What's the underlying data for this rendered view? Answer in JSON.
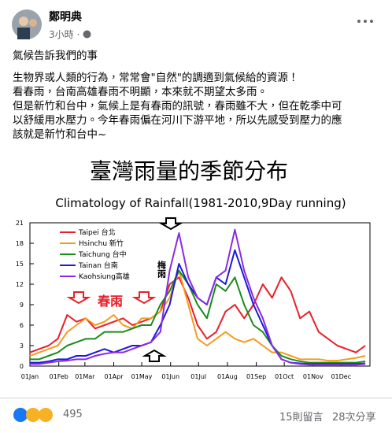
{
  "header": {
    "name": "鄭明典",
    "time": "3小時"
  },
  "post": {
    "lines": [
      "氣候告訴我們的事",
      "生物界或人類的行為，常常會\"自然\"的調適到氣候給的資源！",
      "看春雨，台南高雄春雨不明顯，本來就不期望太多雨。",
      "但是新竹和台中，氣候上是有春雨的訊號，春雨雖不大，但在乾季中可",
      "以舒緩用水壓力。今年春雨偏在河川下游平地，所以先感受到壓力的應",
      "該就是新竹和台中~"
    ]
  },
  "chart_data": {
    "type": "line",
    "title": "臺灣雨量的季節分布",
    "subtitle": "Climatology of Rainfall(1981-2010,9Day running)",
    "x": [
      0,
      10,
      20,
      30,
      40,
      50,
      60,
      70,
      80,
      90,
      100,
      110,
      120,
      130,
      140,
      150,
      160,
      170,
      180,
      190,
      200,
      210,
      220,
      230,
      240,
      250,
      260,
      270,
      280,
      290,
      300,
      310,
      320,
      330,
      340,
      350,
      360
    ],
    "xlim": [
      0,
      365
    ],
    "xticks": [
      {
        "value": 0,
        "label": "01Jan"
      },
      {
        "value": 31,
        "label": "01Feb"
      },
      {
        "value": 59,
        "label": "01Mar"
      },
      {
        "value": 90,
        "label": "01Apr"
      },
      {
        "value": 120,
        "label": "01May"
      },
      {
        "value": 151,
        "label": "01Jun"
      },
      {
        "value": 181,
        "label": "01Jul"
      },
      {
        "value": 212,
        "label": "01Aug"
      },
      {
        "value": 243,
        "label": "01Sep"
      },
      {
        "value": 273,
        "label": "01Oct"
      },
      {
        "value": 304,
        "label": "01Nov"
      },
      {
        "value": 334,
        "label": "01Dec"
      }
    ],
    "ylim": [
      0,
      21
    ],
    "yticks": [
      0,
      3,
      6,
      9,
      12,
      15,
      18,
      21
    ],
    "series": [
      {
        "name": "Taipei 台北",
        "color": "#e8202a",
        "values": [
          2,
          2.5,
          3,
          4,
          7.5,
          6.5,
          7,
          5.5,
          6,
          6.5,
          7,
          6,
          6.5,
          7,
          8,
          12,
          13,
          10,
          6,
          4,
          5,
          8,
          9,
          7,
          9,
          12,
          10,
          13,
          11,
          7,
          8,
          5,
          4,
          3,
          2.5,
          2,
          3
        ]
      },
      {
        "name": "Hsinchu 新竹",
        "color": "#f39c1f",
        "values": [
          1.5,
          2,
          2.5,
          3,
          5,
          6,
          7,
          6,
          6.5,
          7.5,
          6,
          5.5,
          7,
          7,
          8,
          10,
          14,
          9,
          4,
          3,
          4,
          5,
          4,
          3.5,
          4,
          3,
          2,
          2,
          1.5,
          1,
          1,
          1,
          0.8,
          0.8,
          1,
          1.2,
          1.5
        ]
      },
      {
        "name": "Taichung 台中",
        "color": "#1a8c1a",
        "values": [
          1,
          1,
          1.5,
          2,
          3,
          3.5,
          4,
          4,
          5,
          5,
          5,
          5.5,
          6,
          6,
          9,
          11,
          14,
          12,
          9,
          7,
          12,
          11,
          13,
          9,
          6,
          5,
          3,
          1.5,
          1,
          0.7,
          0.5,
          0.5,
          0.5,
          0.5,
          0.5,
          0.5,
          0.7
        ]
      },
      {
        "name": "Tainan 台南",
        "color": "#1a1adc",
        "values": [
          0.5,
          0.5,
          0.7,
          1,
          1,
          1.5,
          1.5,
          2,
          2.5,
          2,
          2.5,
          3,
          3,
          3.5,
          6,
          9,
          15,
          12,
          10,
          9,
          13,
          12,
          17,
          13,
          9,
          6,
          3,
          1,
          0.5,
          0.4,
          0.3,
          0.3,
          0.3,
          0.3,
          0.3,
          0.3,
          0.4
        ]
      },
      {
        "name": "Kaohsiung高雄",
        "color": "#8a2be2",
        "values": [
          0.3,
          0.3,
          0.5,
          0.7,
          0.8,
          1,
          1,
          1.5,
          1.8,
          2,
          2,
          2.5,
          3,
          3.5,
          5,
          14,
          19.5,
          13,
          10,
          9,
          13,
          14,
          20,
          14,
          10,
          7,
          3,
          1,
          0.5,
          0.3,
          0.2,
          0.2,
          0.2,
          0.2,
          0.2,
          0.2,
          0.3
        ]
      }
    ],
    "annotations": [
      "春雨",
      "梅雨"
    ]
  },
  "footer": {
    "reactions": 495,
    "comments": "15則留言",
    "shares": "28次分享"
  }
}
